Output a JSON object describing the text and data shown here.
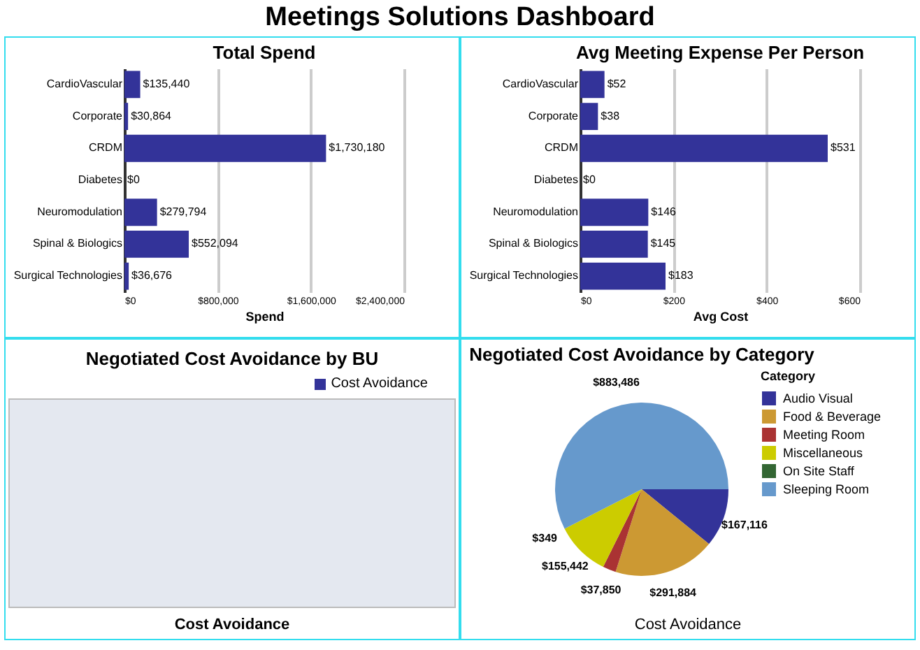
{
  "chart_data": [
    {
      "type": "other",
      "title": "Meetings Solutions Dashboard"
    },
    {
      "type": "bar",
      "orientation": "horizontal",
      "title": "Total Spend",
      "xlabel": "Spend",
      "categories": [
        "CardioVascular",
        "Corporate",
        "CRDM",
        "Diabetes",
        "Neuromodulation",
        "Spinal & Biologics",
        "Surgical Technologies"
      ],
      "values": [
        135440,
        30864,
        1730180,
        0,
        279794,
        552094,
        36676
      ],
      "value_labels": [
        "$135,440",
        "$30,864",
        "$1,730,180",
        "$0",
        "$279,794",
        "$552,094",
        "$36,676"
      ],
      "color": "#333399",
      "xlim": [
        0,
        2400000
      ],
      "xticks": [
        {
          "value": 0,
          "label": "$0"
        },
        {
          "value": 800000,
          "label": "$800,000"
        },
        {
          "value": 1600000,
          "label": "$1,600,000"
        },
        {
          "value": 2400000,
          "label": "$2,400,000"
        }
      ],
      "grid": "x"
    },
    {
      "type": "bar",
      "orientation": "horizontal",
      "title": "Avg Meeting Expense Per Person",
      "xlabel": "Avg Cost",
      "categories": [
        "CardioVascular",
        "Corporate",
        "CRDM",
        "Diabetes",
        "Neuromodulation",
        "Spinal & Biologics",
        "Surgical Technologies"
      ],
      "values": [
        52,
        38,
        531,
        0,
        146,
        145,
        183
      ],
      "value_labels": [
        "$52",
        "$38",
        "$531",
        "$0",
        "$146",
        "$145",
        "$183"
      ],
      "color": "#333399",
      "xlim": [
        0,
        600
      ],
      "xticks": [
        {
          "value": 0,
          "label": "$0"
        },
        {
          "value": 200,
          "label": "$200"
        },
        {
          "value": 400,
          "label": "$400"
        },
        {
          "value": 600,
          "label": "$600"
        }
      ],
      "grid": "x"
    },
    {
      "type": "other",
      "title": "Negotiated Cost Avoidance by BU",
      "xlabel": "Cost Avoidance",
      "annotations": [
        "Cost Avoidance"
      ]
    },
    {
      "type": "pie",
      "title": "Negotiated Cost Avoidance by Category",
      "xlabel": "Cost Avoidance",
      "legend_title": "Category",
      "legend": "top right",
      "categories": [
        "Audio Visual",
        "Food & Beverage",
        "Meeting Room",
        "Miscellaneous",
        "On Site Staff",
        "Sleeping Room"
      ],
      "values": [
        167116,
        291884,
        37850,
        155442,
        349,
        883486
      ],
      "value_labels": [
        "$167,116",
        "$291,884",
        "$37,850",
        "$155,442",
        "$349",
        "$883,486"
      ],
      "colors": [
        "#333399",
        "#cc9933",
        "#aa3333",
        "#cccc00",
        "#336633",
        "#6699cc"
      ]
    }
  ]
}
